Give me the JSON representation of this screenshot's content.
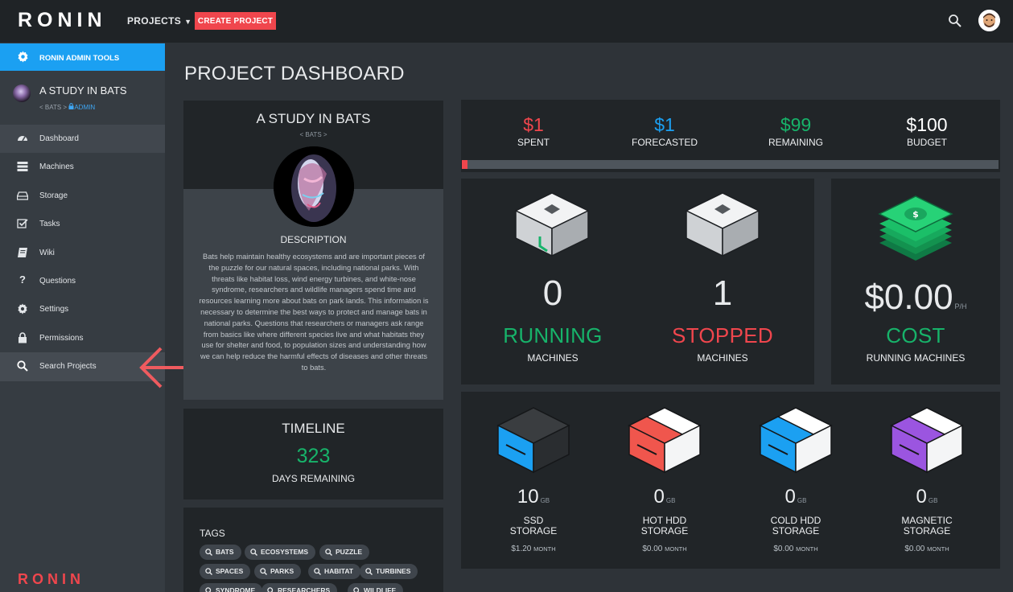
{
  "header": {
    "logo": "RONIN",
    "projects_label": "PROJECTS",
    "create_label": "CREATE PROJECT"
  },
  "sidebar": {
    "admin_tools": "RONIN ADMIN TOOLS",
    "project_name": "A STUDY IN BATS",
    "project_breadcrumb": "< BATS >",
    "project_role": "ADMIN",
    "items": [
      {
        "label": "Dashboard",
        "icon": "dashboard-icon"
      },
      {
        "label": "Machines",
        "icon": "machines-icon"
      },
      {
        "label": "Storage",
        "icon": "storage-icon"
      },
      {
        "label": "Tasks",
        "icon": "tasks-icon"
      },
      {
        "label": "Wiki",
        "icon": "wiki-icon"
      },
      {
        "label": "Questions",
        "icon": "question-icon"
      },
      {
        "label": "Settings",
        "icon": "gear-icon"
      },
      {
        "label": "Permissions",
        "icon": "lock-icon"
      },
      {
        "label": "Search Projects",
        "icon": "search-icon"
      }
    ],
    "footer_logo": "RONIN"
  },
  "page": {
    "title": "PROJECT DASHBOARD"
  },
  "project_card": {
    "name": "A STUDY IN BATS",
    "sub": "< BATS >",
    "desc_title": "DESCRIPTION",
    "description": "Bats help maintain healthy ecosystems and are important pieces of the puzzle for our natural spaces, including national parks. With threats like habitat loss, wind energy turbines, and white-nose syndrome, researchers and wildlife managers spend time and resources learning more about bats on park lands. This information is necessary to determine the best ways to protect and manage bats in national parks. Questions that researchers or managers ask range from basics like where different species live and what habitats they use for shelter and food, to population sizes and understanding how we can help reduce the harmful effects of diseases and other threats to bats."
  },
  "timeline": {
    "title": "TIMELINE",
    "value": "323",
    "label": "DAYS REMAINING"
  },
  "tags": {
    "title": "TAGS",
    "items": [
      "BATS",
      "ECOSYSTEMS",
      "PUZZLE",
      "SPACES",
      "PARKS",
      "HABITAT",
      "TURBINES",
      "SYNDROME",
      "RESEARCHERS",
      "WILDLIFE"
    ]
  },
  "budget": {
    "spent": {
      "value": "$1",
      "label": "SPENT",
      "color": "#f0464d"
    },
    "forecasted": {
      "value": "$1",
      "label": "FORECASTED",
      "color": "#1ba0f2"
    },
    "remaining": {
      "value": "$99",
      "label": "REMAINING",
      "color": "#17b36a"
    },
    "budget": {
      "value": "$100",
      "label": "BUDGET",
      "color": "#ffffff"
    },
    "spent_fraction": 0.01
  },
  "machines": {
    "running": {
      "count": "0",
      "status": "RUNNING",
      "label": "MACHINES",
      "color": "#17b36a"
    },
    "stopped": {
      "count": "1",
      "status": "STOPPED",
      "label": "MACHINES",
      "color": "#f0464d"
    },
    "cost": {
      "value": "$0.00",
      "unit": "P/H",
      "status": "COST",
      "label": "RUNNING MACHINES",
      "color": "#17b36a"
    }
  },
  "storage": [
    {
      "value": "10",
      "unit": "GB",
      "line1": "SSD",
      "line2": "STORAGE",
      "cost": "$1.20",
      "cost_unit": "MONTH",
      "color": "#1ba0f2"
    },
    {
      "value": "0",
      "unit": "GB",
      "line1": "HOT HDD",
      "line2": "STORAGE",
      "cost": "$0.00",
      "cost_unit": "MONTH",
      "color": "#f0564d"
    },
    {
      "value": "0",
      "unit": "GB",
      "line1": "COLD HDD",
      "line2": "STORAGE",
      "cost": "$0.00",
      "cost_unit": "MONTH",
      "color": "#1ba0f2"
    },
    {
      "value": "0",
      "unit": "GB",
      "line1": "MAGNETIC",
      "line2": "STORAGE",
      "cost": "$0.00",
      "cost_unit": "MONTH",
      "color": "#9b55e0"
    }
  ]
}
